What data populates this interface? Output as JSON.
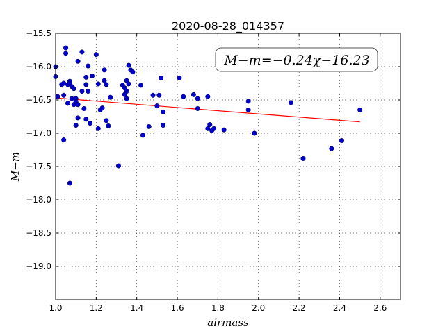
{
  "chart_data": {
    "type": "scatter",
    "title": "2020-08-28_014357",
    "xlabel": "airmass",
    "ylabel": "M−m",
    "xlim": [
      1.0,
      2.7
    ],
    "ylim": [
      -15.5,
      -19.5
    ],
    "y_inverted": true,
    "grid": true,
    "grid_style": "dotted",
    "x_ticks": [
      1.0,
      1.2,
      1.4,
      1.6,
      1.8,
      2.0,
      2.2,
      2.4,
      2.6
    ],
    "x_tick_labels": [
      "1.0",
      "1.2",
      "1.4",
      "1.6",
      "1.8",
      "2.0",
      "2.2",
      "2.4",
      "2.6"
    ],
    "y_ticks": [
      -15.5,
      -16.0,
      -16.5,
      -17.0,
      -17.5,
      -18.0,
      -18.5,
      -19.0
    ],
    "y_tick_labels": [
      "−15.5",
      "−16.0",
      "−16.5",
      "−17.0",
      "−17.5",
      "−18.0",
      "−18.5",
      "−19.0"
    ],
    "annotation": "M−m=−0.24χ−16.23",
    "annotation_position": "top-right",
    "fit": {
      "slope": -0.24,
      "intercept": -16.23,
      "x_range": [
        1.0,
        2.5
      ],
      "color": "#ff0000"
    },
    "point_color": "#0000cc",
    "points": {
      "x": [
        1.0,
        1.0,
        1.01,
        1.03,
        1.04,
        1.04,
        1.05,
        1.05,
        1.06,
        1.06,
        1.07,
        1.07,
        1.08,
        1.08,
        1.09,
        1.09,
        1.1,
        1.1,
        1.1,
        1.11,
        1.11,
        1.11,
        1.13,
        1.13,
        1.14,
        1.15,
        1.15,
        1.15,
        1.16,
        1.16,
        1.17,
        1.18,
        1.2,
        1.21,
        1.21,
        1.22,
        1.23,
        1.24,
        1.24,
        1.25,
        1.25,
        1.26,
        1.27,
        1.31,
        1.33,
        1.34,
        1.34,
        1.35,
        1.35,
        1.35,
        1.36,
        1.36,
        1.37,
        1.38,
        1.42,
        1.43,
        1.46,
        1.48,
        1.5,
        1.51,
        1.52,
        1.53,
        1.53,
        1.61,
        1.63,
        1.68,
        1.7,
        1.7,
        1.75,
        1.75,
        1.76,
        1.77,
        1.78,
        1.83,
        1.95,
        1.95,
        1.98,
        2.16,
        2.22,
        2.36,
        2.41,
        2.5,
        1.04,
        1.07
      ],
      "y": [
        -16.0,
        -16.15,
        -16.45,
        -16.27,
        -16.25,
        -16.43,
        -15.72,
        -15.8,
        -16.27,
        -16.55,
        -16.22,
        -16.25,
        -16.3,
        -16.48,
        -16.33,
        -16.57,
        -16.48,
        -16.53,
        -16.88,
        -15.92,
        -16.57,
        -16.77,
        -16.37,
        -15.78,
        -16.63,
        -16.16,
        -16.27,
        -16.79,
        -16.37,
        -15.99,
        -16.85,
        -16.14,
        -15.82,
        -16.26,
        -16.93,
        -16.65,
        -16.62,
        -16.05,
        -16.21,
        -16.27,
        -16.81,
        -16.89,
        -16.46,
        -17.49,
        -16.28,
        -16.32,
        -16.42,
        -16.21,
        -16.37,
        -16.48,
        -16.26,
        -15.98,
        -16.05,
        -16.08,
        -16.28,
        -17.03,
        -16.9,
        -16.43,
        -16.59,
        -16.43,
        -16.17,
        -16.68,
        -16.88,
        -16.17,
        -16.45,
        -16.42,
        -16.48,
        -16.63,
        -16.45,
        -16.93,
        -16.87,
        -16.96,
        -16.93,
        -16.95,
        -16.52,
        -16.65,
        -17.0,
        -16.54,
        -17.38,
        -17.23,
        -17.11,
        -16.65,
        -17.1,
        -17.75
      ]
    }
  }
}
